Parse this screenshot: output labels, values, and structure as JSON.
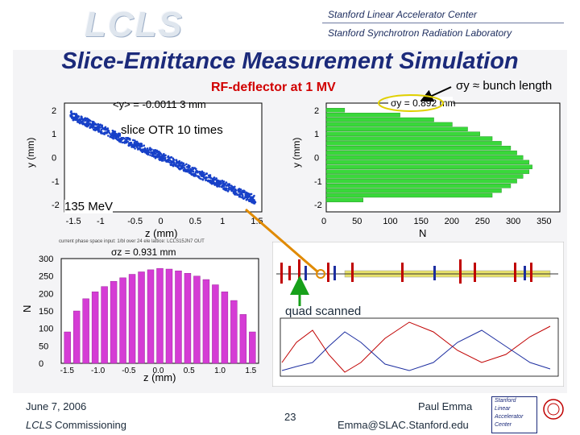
{
  "header": {
    "logo_text": "LCLS",
    "org_line1": "Stanford Linear Accelerator Center",
    "org_line2": "Stanford Synchrotron Radiation Laboratory"
  },
  "slide": {
    "title": "Slice-Emittance Measurement Simulation",
    "rf_label": "RF-deflector at 1 MV",
    "sigma_label": "σy ≈ bunch length",
    "otr_label": "slice OTR 10 times",
    "energy_label": "135 MeV",
    "quad_label": "quad scanned"
  },
  "plot_top_left": {
    "header_text": "<y> = -0.0011 3 mm",
    "xlabel": "z (mm)",
    "ylabel": "y (mm)",
    "xticks": [
      "-1.5",
      "-1",
      "-0.5",
      "0",
      "0.5",
      "1",
      "1.5"
    ],
    "yticks": [
      "2",
      "1",
      "0",
      "-1",
      "-2"
    ]
  },
  "plot_top_right": {
    "header_text": "σy = 0.892 mm",
    "xlabel": "N",
    "ylabel": "y (mm)",
    "xticks": [
      "0",
      "50",
      "100",
      "150",
      "200",
      "250",
      "300",
      "350"
    ],
    "yticks": [
      "2",
      "1",
      "0",
      "-1",
      "-2"
    ]
  },
  "plot_bottom_left": {
    "header_text": "σz = 0.931 mm",
    "caption_small": "current phase space   input: 1/bl over 24 ele   lattice: LCLS15JN7 OUT",
    "xlabel": "z (mm)",
    "ylabel": "N",
    "xticks": [
      "-1.5",
      "-1.0",
      "-0.5",
      "0.0",
      "0.5",
      "1.0",
      "1.5"
    ],
    "yticks": [
      "300",
      "250",
      "200",
      "150",
      "100",
      "50",
      "0"
    ]
  },
  "chart_data": [
    {
      "type": "scatter",
      "title": "<y> = -0.0011 3 mm",
      "xlabel": "z (mm)",
      "ylabel": "y (mm)",
      "xlim": [
        -1.6,
        1.6
      ],
      "ylim": [
        -2.3,
        2.3
      ],
      "series": [
        {
          "x": [
            -1.5,
            -1.0,
            -0.5,
            0.0,
            0.5,
            1.0,
            1.5
          ],
          "y": [
            1.8,
            1.2,
            0.6,
            0.0,
            -0.6,
            -1.2,
            -1.8
          ]
        }
      ]
    },
    {
      "type": "bar",
      "title": "σy = 0.892 mm",
      "xlabel": "N",
      "ylabel": "y (mm)",
      "xlim": [
        0,
        380
      ],
      "ylim": [
        -2.3,
        2.3
      ],
      "y": [
        2.0,
        1.8,
        1.6,
        1.4,
        1.2,
        1.0,
        0.8,
        0.6,
        0.4,
        0.2,
        0.0,
        -0.2,
        -0.4,
        -0.6,
        -0.8,
        -1.0,
        -1.2,
        -1.4,
        -1.6,
        -1.8
      ],
      "values": [
        30,
        120,
        175,
        205,
        230,
        250,
        270,
        285,
        300,
        310,
        320,
        330,
        335,
        330,
        320,
        310,
        300,
        285,
        270,
        60
      ]
    },
    {
      "type": "bar",
      "title": "σz = 0.931 mm",
      "xlabel": "z (mm)",
      "ylabel": "N",
      "xlim": [
        -1.6,
        1.6
      ],
      "ylim": [
        0,
        300
      ],
      "x": [
        -1.5,
        -1.35,
        -1.2,
        -1.05,
        -0.9,
        -0.75,
        -0.6,
        -0.45,
        -0.3,
        -0.15,
        0.0,
        0.15,
        0.3,
        0.45,
        0.6,
        0.75,
        0.9,
        1.05,
        1.2,
        1.35,
        1.5
      ],
      "values": [
        90,
        150,
        185,
        205,
        220,
        235,
        245,
        255,
        262,
        268,
        272,
        270,
        265,
        258,
        250,
        240,
        225,
        205,
        180,
        140,
        90
      ]
    }
  ],
  "footer": {
    "date": "June 7, 2006",
    "project_italic": "LCLS",
    "project_rest": "Commissioning",
    "page": "23",
    "author": "Paul Emma",
    "email": "Emma@SLAC.Stanford.edu",
    "logo_lines": [
      "Stanford",
      "Linear",
      "Accelerator",
      "Center"
    ]
  }
}
